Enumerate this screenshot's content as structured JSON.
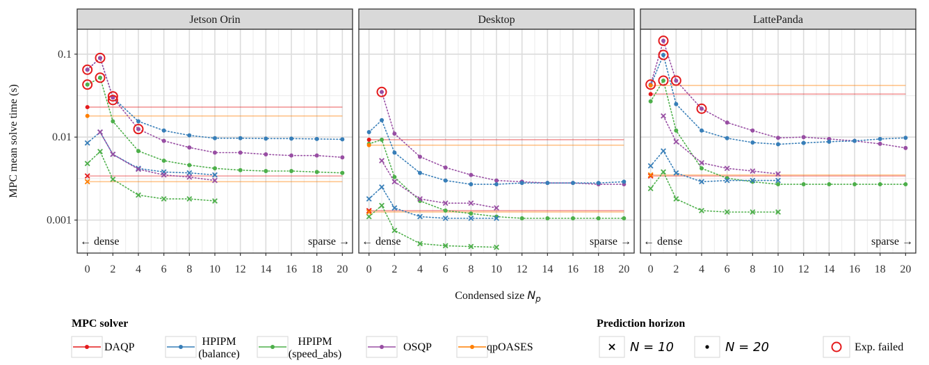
{
  "chart_data": {
    "type": "line",
    "facets": [
      "Jetson Orin",
      "Desktop",
      "LattePanda"
    ],
    "xlabel": "Condensed size N_p",
    "xlabel_parts": {
      "text": "Condensed size ",
      "symbol": "N",
      "subscript": "p"
    },
    "ylabel": "MPC mean solve time (s)",
    "yscale": "log",
    "ylim": [
      0.0004,
      0.2
    ],
    "xlim": [
      -0.8,
      20.8
    ],
    "x_ticks": [
      0,
      2,
      4,
      6,
      8,
      10,
      12,
      14,
      16,
      18,
      20
    ],
    "y_ticks": [
      {
        "v": 0.001,
        "label": "0.001"
      },
      {
        "v": 0.01,
        "label": "0.01"
      },
      {
        "v": 0.1,
        "label": "0.1"
      }
    ],
    "grid": true,
    "annotations": {
      "dense": "← dense",
      "sparse": "sparse →"
    },
    "solvers": [
      {
        "name": "DAQP",
        "color": "#e41a1c"
      },
      {
        "name": "HPIPM (balance)",
        "lines": [
          "HPIPM",
          "(balance)"
        ],
        "color": "#377eb8"
      },
      {
        "name": "HPIPM (speed_abs)",
        "lines": [
          "HPIPM",
          "(speed_abs)"
        ],
        "color": "#4daf4a"
      },
      {
        "name": "OSQP",
        "color": "#984ea3"
      },
      {
        "name": "qpOASES",
        "color": "#ff7f00"
      }
    ],
    "legend": {
      "solver_title": "MPC solver",
      "horizon_title": "Prediction horizon",
      "horizons": [
        {
          "marker": "×",
          "label": "N = 10"
        },
        {
          "marker": "•",
          "label": "N = 20"
        }
      ],
      "failed_label": "Exp. failed",
      "position": "bottom"
    },
    "panels": [
      {
        "title": "Jetson Orin",
        "series": [
          {
            "solver": "HPIPM (balance)",
            "N": 20,
            "x": [
              0,
              1,
              2,
              4,
              6,
              8,
              10,
              12,
              14,
              16,
              18,
              20
            ],
            "y": [
              0.065,
              0.09,
              0.03,
              0.0155,
              0.012,
              0.0105,
              0.0097,
              0.0097,
              0.0096,
              0.0096,
              0.0095,
              0.0094
            ]
          },
          {
            "solver": "OSQP",
            "N": 20,
            "x": [
              0,
              1,
              2,
              4,
              6,
              8,
              10,
              12,
              14,
              16,
              18,
              20
            ],
            "y": [
              0.065,
              0.09,
              0.03,
              0.0125,
              0.009,
              0.0075,
              0.0065,
              0.0065,
              0.0062,
              0.006,
              0.006,
              0.0057
            ]
          },
          {
            "solver": "HPIPM (speed_abs)",
            "N": 20,
            "x": [
              0,
              1,
              2,
              4,
              6,
              8,
              10,
              12,
              14,
              16,
              18,
              20
            ],
            "y": [
              0.043,
              0.052,
              0.0155,
              0.0068,
              0.0052,
              0.0046,
              0.0042,
              0.004,
              0.0039,
              0.0039,
              0.0038,
              0.0037
            ]
          },
          {
            "solver": "DAQP",
            "N": 20,
            "x": [
              0
            ],
            "y": [
              0.023
            ],
            "hline": 0.023
          },
          {
            "solver": "qpOASES",
            "N": 20,
            "x": [
              0
            ],
            "y": [
              0.018
            ],
            "hline": 0.018
          },
          {
            "solver": "HPIPM (balance)",
            "N": 10,
            "x": [
              0,
              1,
              2,
              4,
              6,
              8,
              10
            ],
            "y": [
              0.0085,
              0.0115,
              0.0062,
              0.0042,
              0.0038,
              0.0037,
              0.0035
            ]
          },
          {
            "solver": "OSQP",
            "N": 10,
            "x": [
              1,
              2,
              4,
              6,
              8,
              10
            ],
            "y": [
              0.0115,
              0.0062,
              0.0041,
              0.0035,
              0.0033,
              0.003
            ]
          },
          {
            "solver": "HPIPM (speed_abs)",
            "N": 10,
            "x": [
              0,
              1,
              2,
              4,
              6,
              8,
              10
            ],
            "y": [
              0.0048,
              0.0067,
              0.0031,
              0.002,
              0.0018,
              0.0018,
              0.0017
            ]
          },
          {
            "solver": "DAQP",
            "N": 10,
            "x": [
              0
            ],
            "y": [
              0.0034
            ],
            "hline": 0.0034
          },
          {
            "solver": "qpOASES",
            "N": 10,
            "x": [
              0
            ],
            "y": [
              0.0029
            ],
            "hline": 0.0029
          }
        ],
        "failed": [
          {
            "x": 0,
            "y": 0.065
          },
          {
            "x": 0,
            "y": 0.043
          },
          {
            "x": 1,
            "y": 0.09
          },
          {
            "x": 1,
            "y": 0.052
          },
          {
            "x": 2,
            "y": 0.031
          },
          {
            "x": 2,
            "y": 0.028
          },
          {
            "x": 4,
            "y": 0.0125
          }
        ]
      },
      {
        "title": "Desktop",
        "series": [
          {
            "solver": "OSQP",
            "N": 20,
            "x": [
              1,
              2,
              4,
              6,
              8,
              10,
              12,
              14,
              16,
              18,
              20
            ],
            "y": [
              0.035,
              0.011,
              0.0058,
              0.0043,
              0.0035,
              0.003,
              0.0029,
              0.0028,
              0.0028,
              0.0027,
              0.0027
            ]
          },
          {
            "solver": "HPIPM (balance)",
            "N": 20,
            "x": [
              0,
              1,
              2,
              4,
              6,
              8,
              10,
              12,
              14,
              16,
              18,
              20
            ],
            "y": [
              0.0115,
              0.016,
              0.0065,
              0.0037,
              0.003,
              0.0027,
              0.0027,
              0.0028,
              0.0028,
              0.0028,
              0.0028,
              0.0029
            ]
          },
          {
            "solver": "HPIPM (speed_abs)",
            "N": 20,
            "x": [
              0,
              1,
              2,
              4,
              6,
              8,
              10,
              12,
              14,
              16,
              18,
              20
            ],
            "y": [
              0.0083,
              0.0093,
              0.0033,
              0.0017,
              0.0013,
              0.0012,
              0.0011,
              0.00105,
              0.00105,
              0.00105,
              0.00105,
              0.00105
            ]
          },
          {
            "solver": "DAQP",
            "N": 20,
            "x": [
              0
            ],
            "y": [
              0.0093
            ],
            "hline": 0.0093
          },
          {
            "solver": "qpOASES",
            "N": 20,
            "x": [
              0
            ],
            "y": [
              0.008
            ],
            "hline": 0.008
          },
          {
            "solver": "HPIPM (balance)",
            "N": 10,
            "x": [
              0,
              1,
              2,
              4,
              6,
              8,
              10
            ],
            "y": [
              0.0018,
              0.0025,
              0.0014,
              0.0011,
              0.00105,
              0.00105,
              0.00105
            ]
          },
          {
            "solver": "OSQP",
            "N": 10,
            "x": [
              1,
              2,
              4,
              6,
              8,
              10
            ],
            "y": [
              0.0052,
              0.0029,
              0.0018,
              0.0016,
              0.0016,
              0.0014
            ]
          },
          {
            "solver": "HPIPM (speed_abs)",
            "N": 10,
            "x": [
              0,
              1,
              2,
              4,
              6,
              8,
              10
            ],
            "y": [
              0.0011,
              0.0015,
              0.00075,
              0.00052,
              0.00049,
              0.00048,
              0.00047
            ]
          },
          {
            "solver": "DAQP",
            "N": 10,
            "x": [
              0
            ],
            "y": [
              0.0013
            ],
            "hline": 0.0013
          },
          {
            "solver": "qpOASES",
            "N": 10,
            "x": [
              0
            ],
            "y": [
              0.00125
            ],
            "hline": 0.00125
          }
        ],
        "failed": [
          {
            "x": 1,
            "y": 0.035
          }
        ]
      },
      {
        "title": "LattePanda",
        "series": [
          {
            "solver": "OSQP",
            "N": 20,
            "x": [
              0,
              1,
              2,
              4,
              6,
              8,
              10,
              12,
              14,
              16,
              18,
              20
            ],
            "y": [
              0.043,
              0.145,
              0.048,
              0.022,
              0.015,
              0.012,
              0.0098,
              0.01,
              0.0095,
              0.009,
              0.0083,
              0.0074
            ]
          },
          {
            "solver": "HPIPM (balance)",
            "N": 20,
            "x": [
              0,
              1,
              2,
              4,
              6,
              8,
              10,
              12,
              14,
              16,
              18,
              20
            ],
            "y": [
              0.042,
              0.098,
              0.025,
              0.012,
              0.0097,
              0.0086,
              0.0082,
              0.0085,
              0.0088,
              0.009,
              0.0095,
              0.0098
            ]
          },
          {
            "solver": "HPIPM (speed_abs)",
            "N": 20,
            "x": [
              0,
              1,
              2,
              4,
              6,
              8,
              10,
              12,
              14,
              16,
              18,
              20
            ],
            "y": [
              0.027,
              0.048,
              0.012,
              0.0042,
              0.0032,
              0.0029,
              0.0027,
              0.0027,
              0.0027,
              0.0027,
              0.0027,
              0.0027
            ]
          },
          {
            "solver": "DAQP",
            "N": 20,
            "x": [
              0
            ],
            "y": [
              0.033
            ],
            "hline": 0.033
          },
          {
            "solver": "qpOASES",
            "N": 20,
            "x": [
              0
            ],
            "y": [
              0.042
            ],
            "hline": 0.042
          },
          {
            "solver": "HPIPM (balance)",
            "N": 10,
            "x": [
              0,
              1,
              2,
              4,
              6,
              8,
              10
            ],
            "y": [
              0.0045,
              0.0068,
              0.0037,
              0.0029,
              0.003,
              0.003,
              0.003
            ]
          },
          {
            "solver": "OSQP",
            "N": 10,
            "x": [
              1,
              2,
              4,
              6,
              8,
              10
            ],
            "y": [
              0.018,
              0.0088,
              0.0049,
              0.0042,
              0.0039,
              0.0036
            ]
          },
          {
            "solver": "HPIPM (speed_abs)",
            "N": 10,
            "x": [
              0,
              1,
              2,
              4,
              6,
              8,
              10
            ],
            "y": [
              0.0024,
              0.0038,
              0.0018,
              0.0013,
              0.00125,
              0.00125,
              0.00125
            ]
          },
          {
            "solver": "DAQP",
            "N": 10,
            "x": [
              0
            ],
            "y": [
              0.0034
            ],
            "hline": 0.0034
          },
          {
            "solver": "qpOASES",
            "N": 10,
            "x": [
              0
            ],
            "y": [
              0.0035
            ],
            "hline": 0.0035
          }
        ],
        "failed": [
          {
            "x": 0,
            "y": 0.043
          },
          {
            "x": 1,
            "y": 0.145
          },
          {
            "x": 1,
            "y": 0.098
          },
          {
            "x": 1,
            "y": 0.048
          },
          {
            "x": 2,
            "y": 0.048
          },
          {
            "x": 4,
            "y": 0.022
          }
        ]
      }
    ]
  }
}
